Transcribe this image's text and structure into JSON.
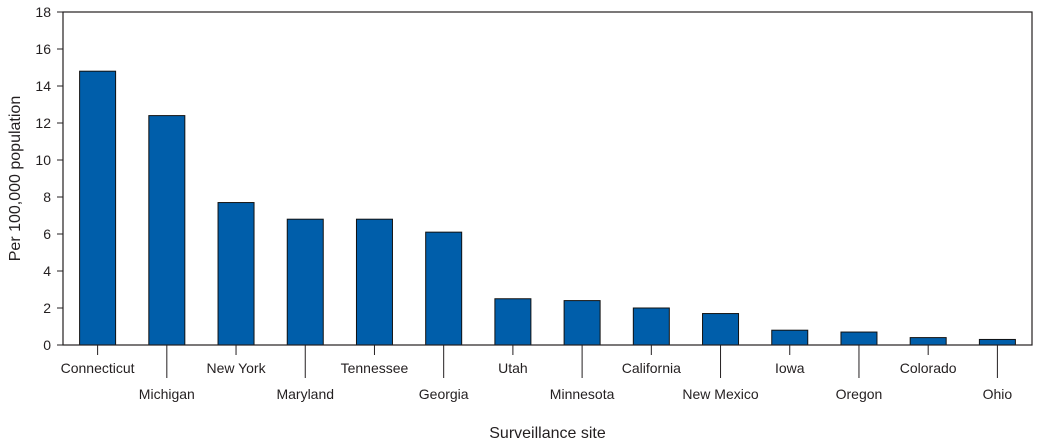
{
  "chart_data": {
    "type": "bar",
    "title": "",
    "xlabel": "Surveillance site",
    "ylabel": "Per 100,000 population",
    "ylim": [
      0,
      18
    ],
    "yticks": [
      "0",
      "2",
      "4",
      "6",
      "8",
      "10",
      "12",
      "14",
      "16",
      "18"
    ],
    "grid": false,
    "categories": [
      "Connecticut",
      "Michigan",
      "New York",
      "Maryland",
      "Tennessee",
      "Georgia",
      "Utah",
      "Minnesota",
      "California",
      "New Mexico",
      "Iowa",
      "Oregon",
      "Colorado",
      "Ohio"
    ],
    "values": [
      14.8,
      12.4,
      7.7,
      6.8,
      6.8,
      6.1,
      2.5,
      2.4,
      2.0,
      1.7,
      0.8,
      0.7,
      0.4,
      0.3
    ],
    "bar_color": "#005eaa"
  }
}
